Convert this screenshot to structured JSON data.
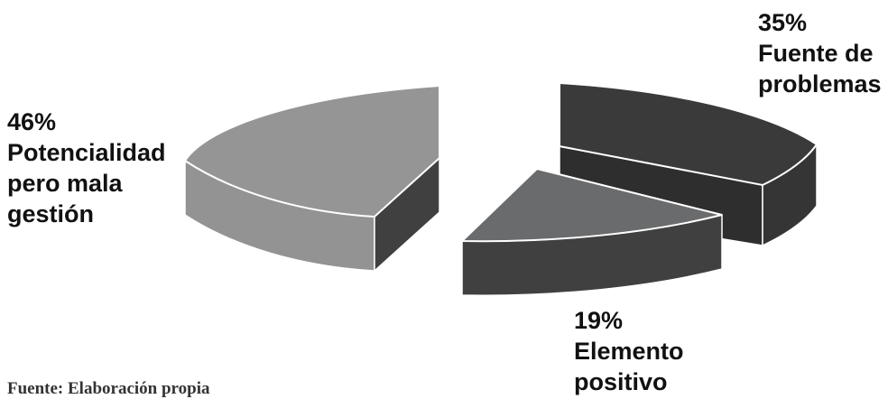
{
  "chart_data": {
    "type": "pie",
    "style": "3d-exploded",
    "slices": [
      {
        "label": "Potencialidad pero mala gestión",
        "lines": [
          "46%",
          "Potencialidad",
          "pero mala",
          "gestión"
        ],
        "value": 46,
        "percent_label": "46%",
        "color": "#959595"
      },
      {
        "label": "Fuente de problemas",
        "lines": [
          "35%",
          "Fuente de",
          "problemas"
        ],
        "value": 35,
        "percent_label": "35%",
        "color": "#3a3a3a"
      },
      {
        "label": "Elemento positivo",
        "lines": [
          "19%",
          "Elemento",
          "positivo"
        ],
        "value": 19,
        "percent_label": "19%",
        "color": "#6a6b6d"
      }
    ]
  },
  "footer": {
    "source_text": "Fuente: Elaboración propia"
  }
}
